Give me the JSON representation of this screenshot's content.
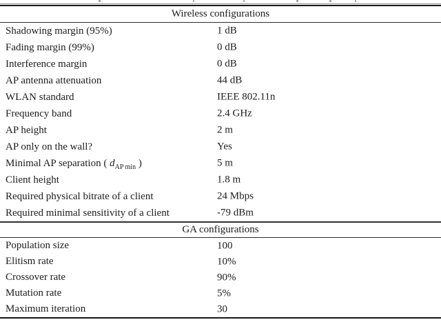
{
  "table": {
    "sections": [
      {
        "header": "Wireless configurations",
        "rows": [
          {
            "label": "Shadowing margin (95%)",
            "value": "1 dB"
          },
          {
            "label": "Fading margin (99%)",
            "value": "0 dB"
          },
          {
            "label": "Interference margin",
            "value": "0 dB"
          },
          {
            "label": "AP antenna attenuation",
            "value": "44 dB"
          },
          {
            "label": "WLAN standard",
            "value": "IEEE 802.11n"
          },
          {
            "label": "Frequency band",
            "value": "2.4 GHz"
          },
          {
            "label": "AP height",
            "value": "2 m"
          },
          {
            "label": "AP only on the wall?",
            "value": "Yes"
          },
          {
            "label": "Minimal AP separation ( d AP min )",
            "label_parts": {
              "pre": "Minimal AP separation ( ",
              "var": "d",
              "sub": "AP min",
              "post": " )"
            },
            "value": "5 m"
          },
          {
            "label": "Client height",
            "value": "1.8 m"
          },
          {
            "label": "Required physical bitrate of a client",
            "value": "24 Mbps"
          },
          {
            "label": "Required minimal sensitivity of a client",
            "value": "-79 dBm"
          }
        ]
      },
      {
        "header": "GA configurations",
        "rows": [
          {
            "label": "Population size",
            "value": "100"
          },
          {
            "label": "Elitism rate",
            "value": "10%"
          },
          {
            "label": "Crossover rate",
            "value": "90%"
          },
          {
            "label": "Mutation rate",
            "value": "5%"
          },
          {
            "label": "Maximum iteration",
            "value": "30"
          }
        ]
      }
    ]
  }
}
